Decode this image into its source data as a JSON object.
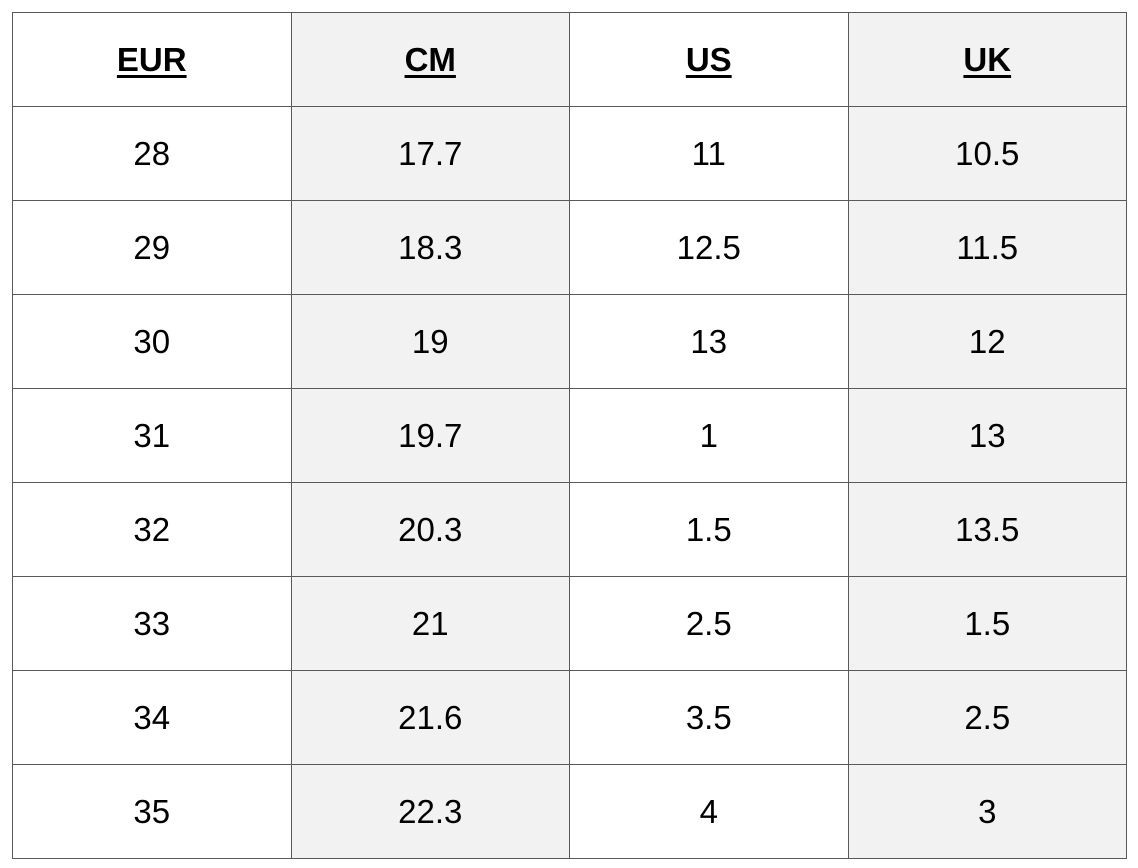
{
  "table": {
    "headers": [
      "EUR",
      "CM",
      "US",
      "UK"
    ],
    "rows": [
      [
        "28",
        "17.7",
        "11",
        "10.5"
      ],
      [
        "29",
        "18.3",
        "12.5",
        "11.5"
      ],
      [
        "30",
        "19",
        "13",
        "12"
      ],
      [
        "31",
        "19.7",
        "1",
        "13"
      ],
      [
        "32",
        "20.3",
        "1.5",
        "13.5"
      ],
      [
        "33",
        "21",
        "2.5",
        "1.5"
      ],
      [
        "34",
        "21.6",
        "3.5",
        "2.5"
      ],
      [
        "35",
        "22.3",
        "4",
        "3"
      ]
    ],
    "colors": {
      "shaded_column_background": "#f2f2f2",
      "plain_column_background": "#ffffff",
      "border": "#595959",
      "text": "#000000"
    }
  }
}
